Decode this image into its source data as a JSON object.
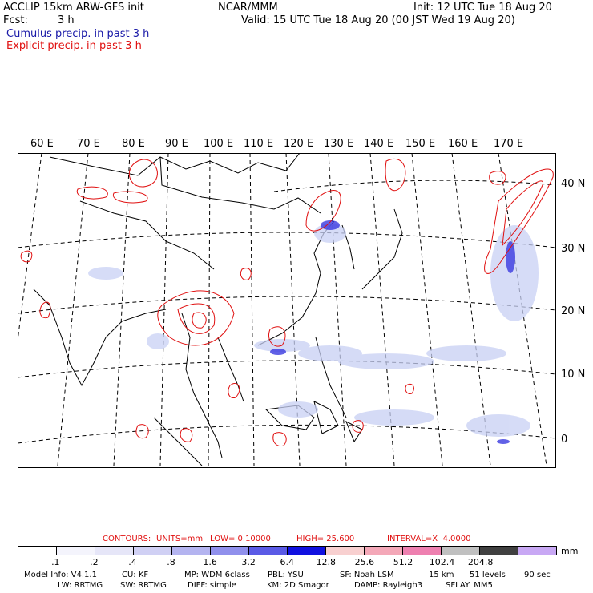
{
  "header": {
    "model_line": "ACCLIP 15km ARW-GFS init",
    "fcst_label": "Fcst:",
    "fcst_value": "3 h",
    "org": "NCAR/MMM",
    "init": "Init: 12 UTC Tue 18 Aug 20",
    "valid": "Valid: 15 UTC Tue 18 Aug 20 (00 JST Wed 19 Aug 20)",
    "legend_cumulus": "Cumulus precip. in past 3 h",
    "legend_explicit": "Explicit precip. in past 3 h"
  },
  "colors": {
    "cumulus": "#1a1aa8",
    "explicit": "#e01010",
    "precip_blue": "#3a3ae0"
  },
  "map": {
    "lon_labels": [
      "60 E",
      "70 E",
      "80 E",
      "90 E",
      "100 E",
      "110 E",
      "120 E",
      "130 E",
      "140 E",
      "150 E",
      "160 E",
      "170 E"
    ],
    "lat_labels": [
      "40 N",
      "30 N",
      "20 N",
      "10 N",
      "0"
    ]
  },
  "contours": {
    "label": "CONTOURS:",
    "units": "UNITS=mm",
    "low": "LOW= 0.10000",
    "high": "HIGH= 25.600",
    "interval": "INTERVAL=X  4.0000"
  },
  "colorbar": {
    "colors": [
      "#ffffff",
      "#f4f4fc",
      "#e6e6f8",
      "#d0d0f4",
      "#b4b4f0",
      "#9090ec",
      "#5a5ae6",
      "#1010e0",
      "#f8d0d0",
      "#f4a8b8",
      "#ee80b0",
      "#c0c0c0",
      "#404040",
      "#c8a8f4"
    ],
    "ticks": [
      ".1",
      ".2",
      ".4",
      ".8",
      "1.6",
      "3.2",
      "6.4",
      "12.8",
      "25.6",
      "51.2",
      "102.4",
      "204.8"
    ],
    "unit": "mm"
  },
  "model_info": {
    "line1": [
      "Model Info: V4.1.1",
      "CU: KF",
      "MP: WDM 6class",
      "PBL: YSU",
      "SF: Noah LSM",
      "15 km",
      "51 levels",
      "90 sec"
    ],
    "line2": [
      "LW: RRTMG",
      "SW: RRTMG",
      "DIFF: simple",
      "KM: 2D Smagor",
      "DAMP: Rayleigh3",
      "SFLAY: MM5"
    ]
  }
}
